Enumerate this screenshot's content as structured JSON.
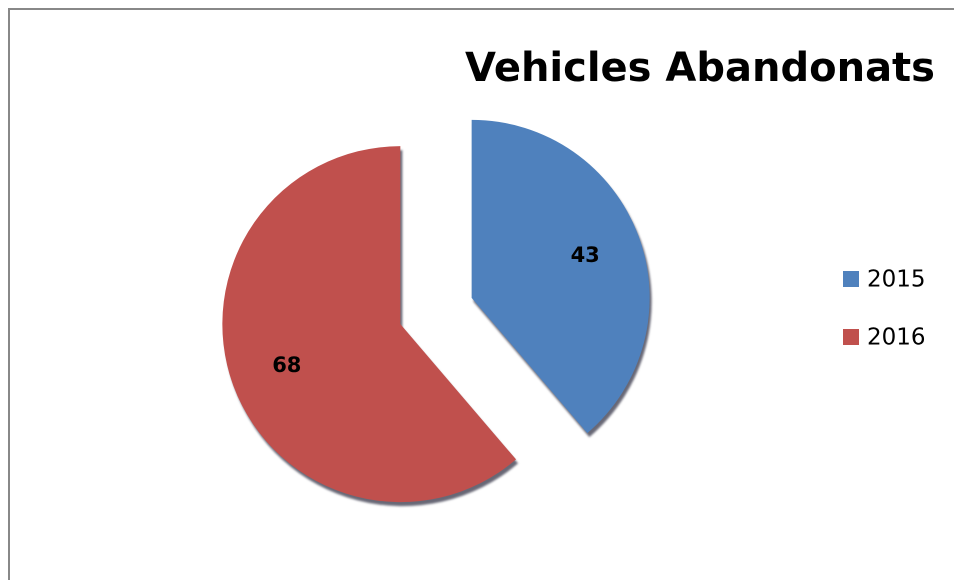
{
  "chart_data": {
    "type": "pie",
    "title": "Vehicles Abandonats",
    "categories": [
      "2015",
      "2016"
    ],
    "values": [
      43,
      68
    ],
    "colors": [
      "#4f81bd",
      "#c0504d"
    ],
    "exploded": true,
    "legend": "right"
  }
}
